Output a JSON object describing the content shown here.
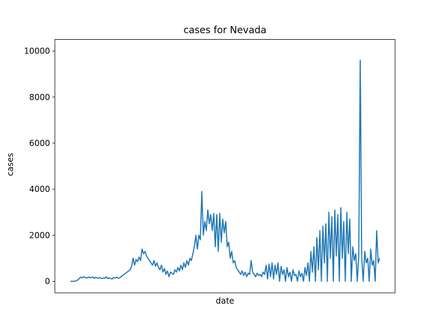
{
  "chart_data": {
    "type": "line",
    "title": "cases for Nevada",
    "xlabel": "date",
    "ylabel": "cases",
    "ylim": [
      -500,
      10500
    ],
    "yticks": [
      0,
      2000,
      4000,
      6000,
      8000,
      10000
    ],
    "grid": false,
    "series_color": "#1f77b4",
    "x_tick_labels_shown": false,
    "series": [
      {
        "values": [
          0,
          0,
          0,
          5,
          20,
          60,
          120,
          180,
          150,
          200,
          160,
          140,
          180,
          170,
          150,
          190,
          130,
          170,
          150,
          130,
          160,
          120,
          140,
          130,
          200,
          110,
          150,
          120,
          100,
          160,
          140,
          180,
          130,
          150,
          200,
          260,
          300,
          350,
          400,
          450,
          500,
          650,
          1000,
          700,
          950,
          850,
          1050,
          900,
          1400,
          1200,
          1300,
          1100,
          1000,
          900,
          800,
          700,
          900,
          650,
          800,
          600,
          500,
          700,
          400,
          550,
          300,
          450,
          200,
          400,
          350,
          300,
          500,
          400,
          600,
          450,
          700,
          500,
          800,
          600,
          900,
          700,
          1000,
          900,
          1200,
          1500,
          2000,
          1400,
          2000,
          1800,
          3900,
          2000,
          2600,
          2200,
          3100,
          2500,
          2900,
          2200,
          2950,
          1500,
          2900,
          1300,
          2950,
          1700,
          2700,
          2100,
          2600,
          1500,
          1700,
          1000,
          1300,
          800,
          900,
          600,
          500,
          400,
          300,
          450,
          250,
          400,
          200,
          350,
          300,
          900,
          400,
          300,
          200,
          350,
          250,
          300,
          200,
          400,
          300,
          700,
          100,
          750,
          200,
          800,
          100,
          700,
          300,
          800,
          0,
          650,
          300,
          500,
          0,
          600,
          200,
          400,
          0,
          500,
          250,
          300,
          0,
          450,
          200,
          350,
          0,
          600,
          250,
          800,
          0,
          1300,
          400,
          1500,
          0,
          1900,
          500,
          2200,
          0,
          2400,
          800,
          2500,
          0,
          3000,
          1000,
          2800,
          0,
          3100,
          1100,
          2900,
          0,
          3200,
          1000,
          2600,
          0,
          3000,
          1200,
          2700,
          0,
          1500,
          900,
          1200,
          0,
          1100,
          9600,
          1000,
          0,
          1300,
          800,
          1000,
          0,
          1400,
          700,
          900,
          0,
          2200,
          800,
          1000
        ]
      }
    ]
  }
}
